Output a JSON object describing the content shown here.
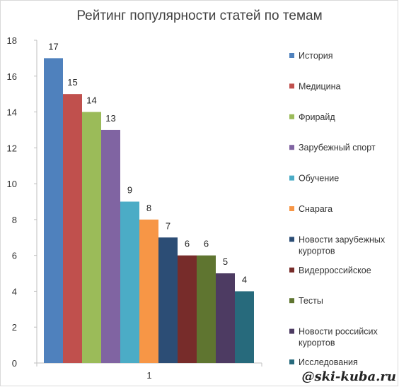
{
  "chart_data": {
    "type": "bar",
    "title": "Рейтинг популярности статей по темам",
    "xlabel": "",
    "ylabel": "",
    "categories": [
      "1"
    ],
    "ylim": [
      0,
      18
    ],
    "yticks": [
      0,
      2,
      4,
      6,
      8,
      10,
      12,
      14,
      16,
      18
    ],
    "grid": false,
    "legend_position": "right",
    "series": [
      {
        "name": "История",
        "values": [
          17
        ],
        "color": "#4F81BD"
      },
      {
        "name": "Медицина",
        "values": [
          15
        ],
        "color": "#C0504D"
      },
      {
        "name": "Фрирайд",
        "values": [
          14
        ],
        "color": "#9BBB59"
      },
      {
        "name": "Зарубежный спорт",
        "values": [
          13
        ],
        "color": "#8064A2"
      },
      {
        "name": "Обучение",
        "values": [
          9
        ],
        "color": "#4BACC6"
      },
      {
        "name": "Снарага",
        "values": [
          8
        ],
        "color": "#F79646"
      },
      {
        "name": "Новости зарубежных курортов",
        "values": [
          7
        ],
        "color": "#2C4D75"
      },
      {
        "name": "Видерроссийское",
        "values": [
          6
        ],
        "color": "#772C2A"
      },
      {
        "name": "Тесты",
        "values": [
          6
        ],
        "color": "#5F7530"
      },
      {
        "name": "Новости российсих курортов",
        "values": [
          5
        ],
        "color": "#4D3B62"
      },
      {
        "name": "Исследования",
        "values": [
          4
        ],
        "color": "#276A7C"
      }
    ]
  },
  "watermark": "@ski-kuba.ru"
}
